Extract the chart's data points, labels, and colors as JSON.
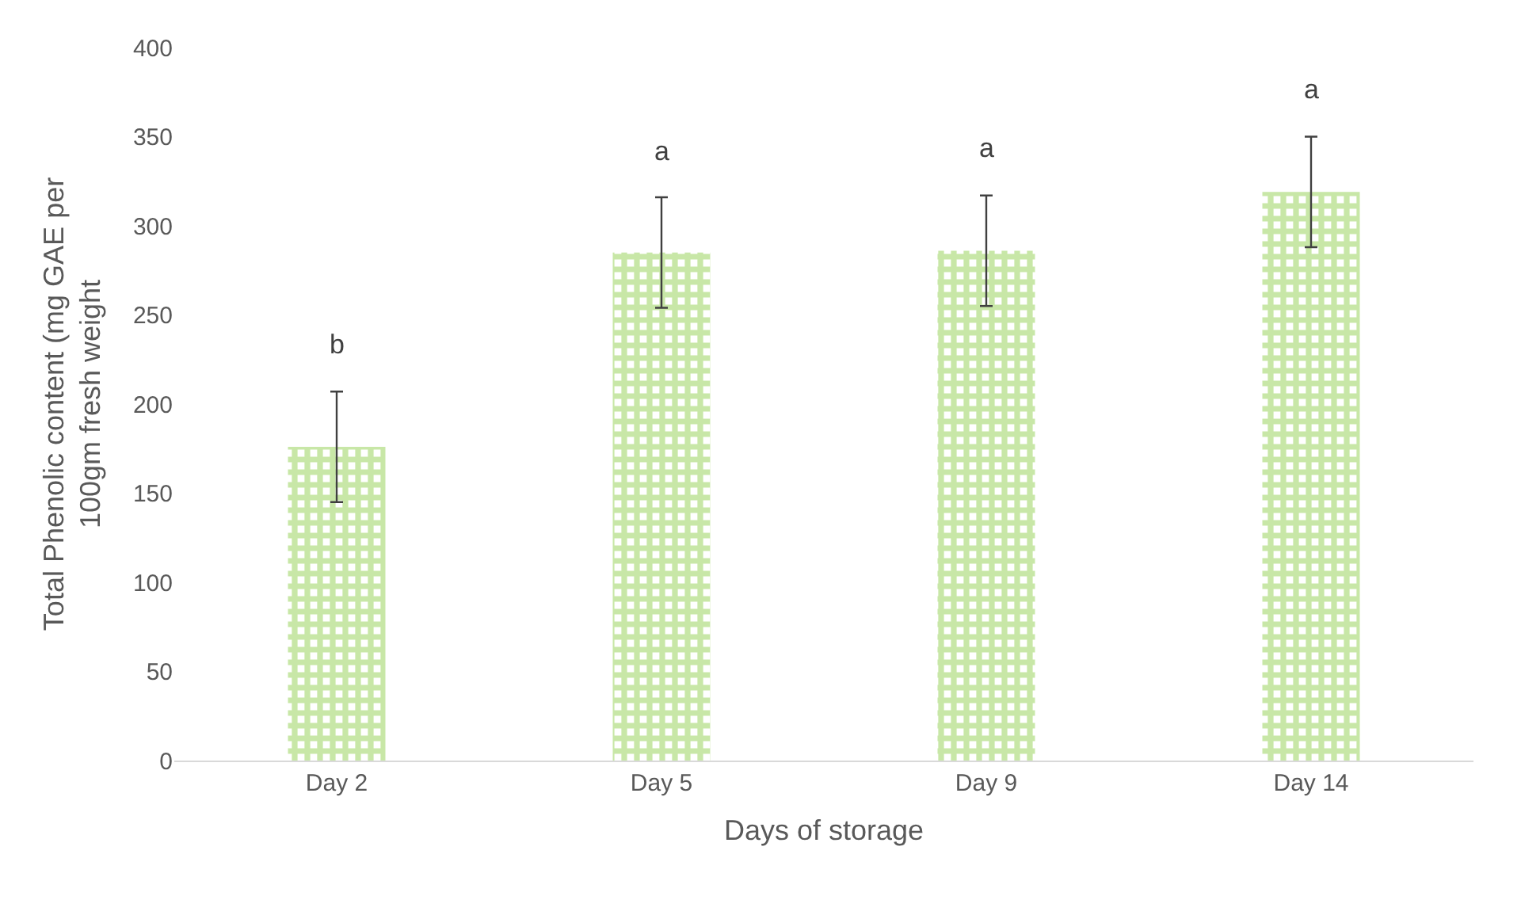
{
  "chart_data": {
    "type": "bar",
    "categories": [
      "Day 2",
      "Day 5",
      "Day 9",
      "Day 14"
    ],
    "values": [
      176,
      285,
      286,
      319
    ],
    "errors": [
      31,
      31,
      31,
      31
    ],
    "color": "#92d050",
    "xlabel": "Days of storage",
    "ylabel": "Total Phenolic content (mg GAE per 100gm fresh weight",
    "ylim": [
      0,
      400
    ],
    "yticks": [
      0,
      50,
      100,
      150,
      200,
      250,
      300,
      350,
      400
    ],
    "grid": false,
    "legend": false,
    "annotations": [
      "b",
      "a",
      "a",
      "a"
    ]
  }
}
